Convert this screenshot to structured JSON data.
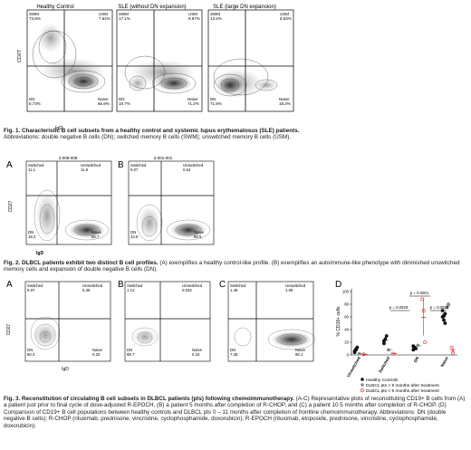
{
  "fig1": {
    "ylabel": "CD27",
    "xlabel": "IgD",
    "panels": [
      {
        "title": "Healthy Control",
        "q": {
          "swm": "SWM",
          "swm_v": "73.8%",
          "usm": "USM",
          "usm_v": "7.62%",
          "dn": "DN",
          "dn_v": "8.73%",
          "naive": "Naive",
          "naive_v": "65.8%"
        }
      },
      {
        "title": "SLE (without DN expansion)",
        "q": {
          "swm": "SWM",
          "swm_v": "17.1%",
          "usm": "USM",
          "usm_v": "8.97%",
          "dn": "DN",
          "dn_v": "18.7%",
          "naive": "Naive",
          "naive_v": "71.2%"
        }
      },
      {
        "title": "SLE (large DN expansion)",
        "q": {
          "swm": "SWM",
          "swm_v": "13.2%",
          "usm": "USM",
          "usm_v": "8.63%",
          "dn": "DN",
          "dn_v": "71.8%",
          "naive": "Naive",
          "naive_v": "18.3%"
        }
      }
    ],
    "caption_title": "Fig. 1. Characteristic B cell subsets from a healthy control and systemic lupus erythematosus (SLE) patients.",
    "caption_text": "Abbreviations: double negative B cells (DN); switched memory B cells (SWM); unswitched memory B cells (USM)."
  },
  "fig2": {
    "ylabel": "CD27",
    "xlabel": "IgD",
    "panels": [
      {
        "letter": "A",
        "id": "2-008-008",
        "q": {
          "sw": "Switched",
          "sw_v": "11.1",
          "un": "Unswitched",
          "un_v": "11.9",
          "dn": "DN",
          "dn_v": "18.2",
          "naive": "Naive",
          "naive_v": "66.7"
        }
      },
      {
        "letter": "B",
        "id": "2-001-001",
        "q": {
          "sw": "Switched",
          "sw_v": "9.07",
          "un": "Unswitched",
          "un_v": "0.64",
          "dn": "DN",
          "dn_v": "23.8",
          "naive": "Naive",
          "naive_v": "66.5"
        }
      }
    ],
    "caption_title": "Fig. 2. DLBCL patients exhibit two distinct B cell profiles.",
    "caption_text": " (A) exemplifies a healthy control-like profile. (B) exemplifies an autoimmune-like phenotype with diminished unswitched memory cells and expansion of double negative B cells (DN)."
  },
  "fig3": {
    "ylabel": "CD27",
    "xlabel": "IgD",
    "panels": [
      {
        "letter": "A",
        "q": {
          "sw": "Switched",
          "sw_v": "9.07",
          "un": "Unswitched",
          "un_v": "0.39",
          "dn": "DN",
          "dn_v": "90.3",
          "naive": "Naive",
          "naive_v": "0.20"
        }
      },
      {
        "letter": "B",
        "q": {
          "sw": "Switched",
          "sw_v": "1.13",
          "un": "Unswitched",
          "un_v": "0.032",
          "dn": "DN",
          "dn_v": "98.7",
          "naive": "Naive",
          "naive_v": "0.16"
        }
      },
      {
        "letter": "C",
        "q": {
          "sw": "Switched",
          "sw_v": "1.49",
          "un": "Unswitched",
          "un_v": "1.08",
          "dn": "DN",
          "dn_v": "7.28",
          "naive": "Naive",
          "naive_v": "90.1"
        }
      }
    ],
    "panel_d": {
      "letter": "D",
      "pvals": [
        "p = 0.0001",
        "p = 0.0029",
        "p = 0.0019"
      ],
      "legend": [
        "Healthy Controls",
        "DLBCL pts > 9 months after treatment",
        "DLBCL pts < 9 months after treatment"
      ]
    },
    "caption_title": "Fig. 3. Reconstitution of circulating B cell subsets in DLBCL patients (pts) following chemoimmunotherapy.",
    "caption_text": " (A-C) Representative plots of reconstituting CD19+ B cells from (A) a patient just prior to final cycle of dose-adjusted R-EPOCH, (B) a patient 5 months after completion of R-CHOP, and (C) a patient 10.5 months after completion of R-CHOP. (D) Comparison of CD19+ B cell populations between healthy controls and DLBCL pts 0 – 11 months after completion of frontline chemoimmunotherapy. Abbreviations: DN (double negative B cells); R-CHOP (rituximab, prednisone, vincristine, cyclophosphamide, doxorubicin); R-EPOCH (rituximab, etoposide, prednisone, vincristine, cyclophosphamide, doxorubicin)."
  },
  "chart_data": {
    "type": "scatter",
    "ylabel": "% CD19+ cells",
    "ylim": [
      0,
      100
    ],
    "yticks": [
      0,
      20,
      40,
      60,
      80,
      100
    ],
    "categories": [
      "Unswitched",
      "Switched",
      "DN",
      "Naive"
    ],
    "series": [
      {
        "name": "Healthy Controls",
        "color": "#111111",
        "points": [
          [
            "Unswitched",
            6
          ],
          [
            "Unswitched",
            9
          ],
          [
            "Unswitched",
            12
          ],
          [
            "Unswitched",
            4
          ],
          [
            "Unswitched",
            8
          ],
          [
            "Switched",
            18
          ],
          [
            "Switched",
            25
          ],
          [
            "Switched",
            30
          ],
          [
            "Switched",
            22
          ],
          [
            "DN",
            8
          ],
          [
            "DN",
            12
          ],
          [
            "DN",
            10
          ],
          [
            "DN",
            14
          ],
          [
            "Naive",
            60
          ],
          [
            "Naive",
            55
          ],
          [
            "Naive",
            65
          ],
          [
            "Naive",
            70
          ],
          [
            "Naive",
            62
          ],
          [
            "Naive",
            50
          ]
        ]
      },
      {
        "name": "DLBCL pts > 9 months after treatment",
        "color": "#888888",
        "points": [
          [
            "Unswitched",
            2
          ],
          [
            "Switched",
            8
          ],
          [
            "DN",
            15
          ],
          [
            "Naive",
            75
          ],
          [
            "Naive",
            80
          ]
        ]
      },
      {
        "name": "DLBCL pts < 9 months after treatment",
        "color": "#d62020",
        "points": [
          [
            "Unswitched",
            1
          ],
          [
            "Switched",
            2
          ],
          [
            "DN",
            88
          ],
          [
            "DN",
            70
          ],
          [
            "DN",
            20
          ],
          [
            "Naive",
            12
          ],
          [
            "Naive",
            3
          ]
        ]
      }
    ]
  }
}
